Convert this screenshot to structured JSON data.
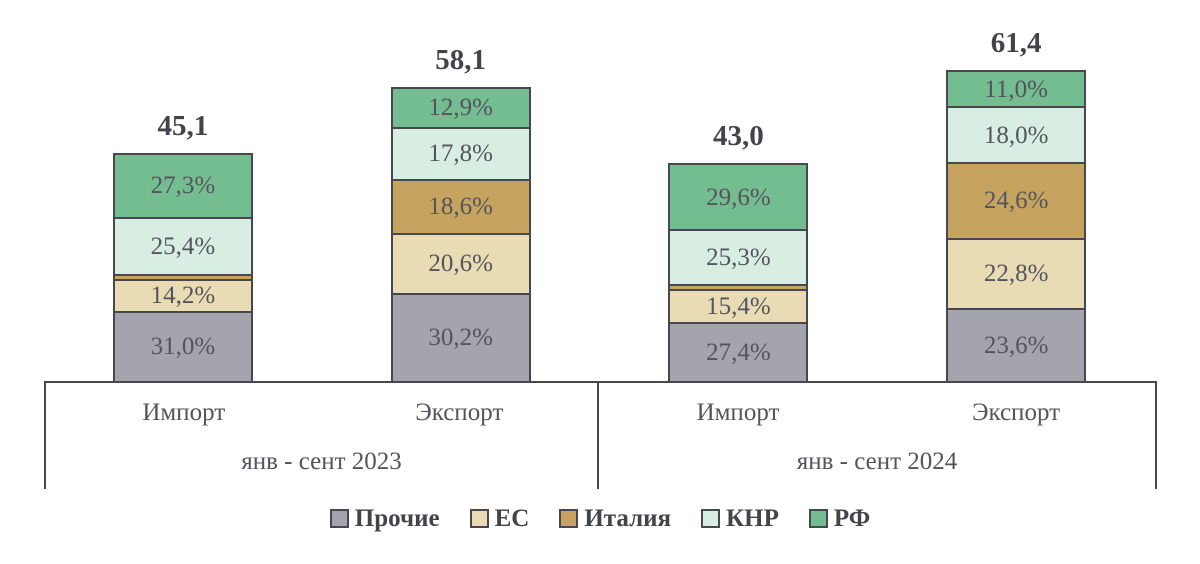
{
  "chart_data": {
    "type": "bar",
    "subtype": "stacked-percent-with-totals",
    "title": "",
    "xlabel": "",
    "ylabel": "",
    "grid": false,
    "legend_position": "bottom",
    "series_order": [
      "Прочие",
      "ЕС",
      "Италия",
      "КНР",
      "РФ"
    ],
    "series_colors": {
      "Прочие": "#a4a4af",
      "ЕС": "#e9dcb4",
      "Италия": "#c6a45f",
      "КНР": "#d9eee2",
      "РФ": "#74bd90"
    },
    "colors": {
      "axis": "#47474f",
      "segment_text": "#54545e",
      "total_text": "#43434b"
    },
    "groups": [
      {
        "label": "янв - сент 2023",
        "bars": [
          {
            "category": "Импорт",
            "total": 45.1,
            "total_label": "45,1",
            "segments": [
              {
                "series": "Прочие",
                "pct": 31.0,
                "label": "31,0%"
              },
              {
                "series": "ЕС",
                "pct": 14.2,
                "label": "14,2%"
              },
              {
                "series": "Италия",
                "pct": 2.1,
                "label": ""
              },
              {
                "series": "КНР",
                "pct": 25.4,
                "label": "25,4%"
              },
              {
                "series": "РФ",
                "pct": 27.3,
                "label": "27,3%"
              }
            ]
          },
          {
            "category": "Экспорт",
            "total": 58.1,
            "total_label": "58,1",
            "segments": [
              {
                "series": "Прочие",
                "pct": 30.2,
                "label": "30,2%"
              },
              {
                "series": "ЕС",
                "pct": 20.6,
                "label": "20,6%"
              },
              {
                "series": "Италия",
                "pct": 18.6,
                "label": "18,6%"
              },
              {
                "series": "КНР",
                "pct": 17.8,
                "label": "17,8%"
              },
              {
                "series": "РФ",
                "pct": 12.9,
                "label": "12,9%"
              }
            ]
          }
        ]
      },
      {
        "label": "янв - сент 2024",
        "bars": [
          {
            "category": "Импорт",
            "total": 43.0,
            "total_label": "43,0",
            "segments": [
              {
                "series": "Прочие",
                "pct": 27.4,
                "label": "27,4%"
              },
              {
                "series": "ЕС",
                "pct": 15.4,
                "label": "15,4%"
              },
              {
                "series": "Италия",
                "pct": 2.3,
                "label": ""
              },
              {
                "series": "КНР",
                "pct": 25.3,
                "label": "25,3%"
              },
              {
                "series": "РФ",
                "pct": 29.6,
                "label": "29,6%"
              }
            ]
          },
          {
            "category": "Экспорт",
            "total": 61.4,
            "total_label": "61,4",
            "segments": [
              {
                "series": "Прочие",
                "pct": 23.6,
                "label": "23,6%"
              },
              {
                "series": "ЕС",
                "pct": 22.8,
                "label": "22,8%"
              },
              {
                "series": "Италия",
                "pct": 24.6,
                "label": "24,6%"
              },
              {
                "series": "КНР",
                "pct": 18.0,
                "label": "18,0%"
              },
              {
                "series": "РФ",
                "pct": 11.0,
                "label": "11,0%"
              }
            ]
          }
        ]
      }
    ]
  }
}
